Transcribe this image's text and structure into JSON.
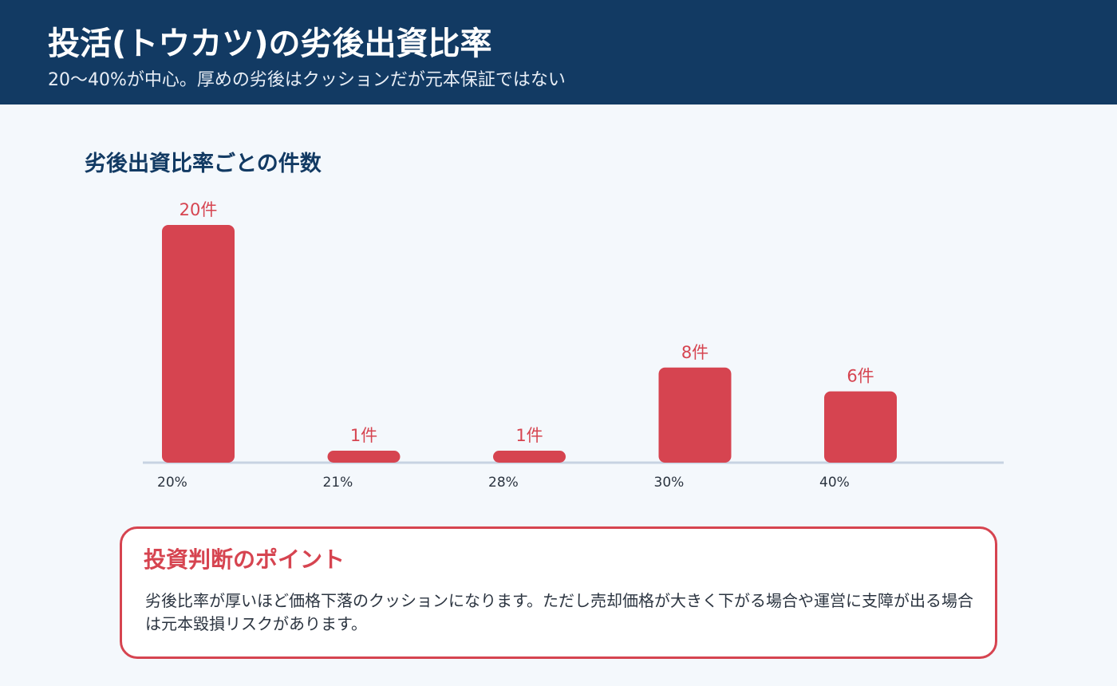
{
  "header": {
    "title": "投活(トウカツ)の劣後出資比率",
    "subtitle": "20〜40%が中心。厚めの劣後はクッションだが元本保証ではない"
  },
  "chart_title": "劣後出資比率ごとの件数",
  "chart_data": {
    "type": "bar",
    "title": "劣後出資比率ごとの件数",
    "categories": [
      "20%",
      "21%",
      "28%",
      "30%",
      "40%"
    ],
    "values": [
      20,
      1,
      1,
      8,
      6
    ],
    "data_labels": [
      "20件",
      "1件",
      "1件",
      "8件",
      "6件"
    ],
    "xlabel": "",
    "ylabel": "",
    "ylim": [
      0,
      20
    ],
    "grid": false,
    "bar_color": "#d64450",
    "label_color": "#d64450"
  },
  "callout": {
    "title": "投資判断のポイント",
    "body": "劣後比率が厚いほど価格下落のクッションになります。ただし売却価格が大きく下がる場合や運営に支障が出る場合は元本毀損リスクがあります。"
  },
  "colors": {
    "header_bg": "#123a63",
    "page_bg": "#f4f8fc",
    "accent": "#d64450"
  }
}
